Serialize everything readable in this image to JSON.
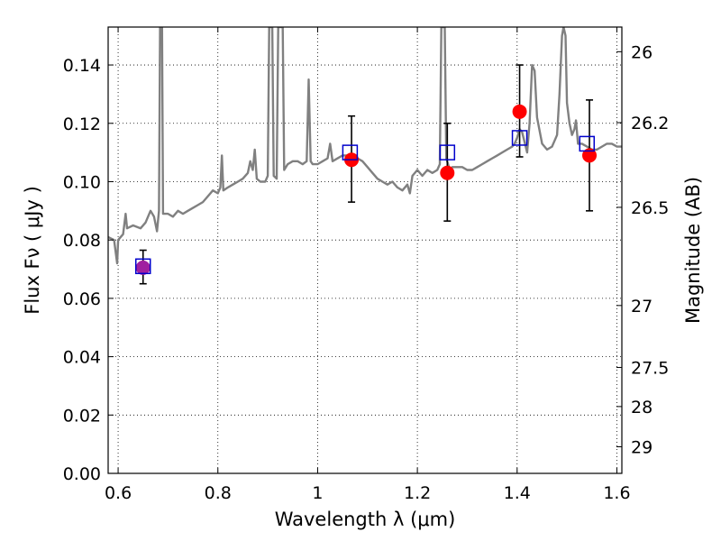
{
  "chart_data": {
    "type": "scatter",
    "xlabel": "Wavelength  λ (μm)",
    "ylabel": "Flux  Fν  ( μJy )",
    "y2label": "Magnitude (AB)",
    "xlim": [
      0.58,
      1.61
    ],
    "ylim": [
      0.0,
      0.153
    ],
    "grid": true,
    "x_ticks": [
      0.6,
      0.8,
      1.0,
      1.2,
      1.4,
      1.6
    ],
    "x_tick_labels": [
      "0.6",
      "0.8",
      "1",
      "1.2",
      "1.4",
      "1.6"
    ],
    "y_ticks": [
      0.0,
      0.02,
      0.04,
      0.06,
      0.08,
      0.1,
      0.12,
      0.14
    ],
    "y_tick_labels": [
      "0.00",
      "0.02",
      "0.04",
      "0.06",
      "0.08",
      "0.10",
      "0.12",
      "0.14"
    ],
    "y2_ticks": [
      26,
      26.2,
      26.5,
      27,
      27.5,
      28,
      29
    ],
    "y2_tick_labels": [
      "26",
      "26.2",
      "26.5",
      "27",
      "27.5",
      "28",
      "29"
    ],
    "colors": {
      "spectrum": "#808080",
      "observed": "#ff0000",
      "model": "#0000cc",
      "errorbar": "#000000",
      "overlap": "#a020a0"
    },
    "spectrum": [
      [
        0.58,
        0.081
      ],
      [
        0.592,
        0.08
      ],
      [
        0.598,
        0.072
      ],
      [
        0.6,
        0.08
      ],
      [
        0.61,
        0.082
      ],
      [
        0.615,
        0.089
      ],
      [
        0.618,
        0.084
      ],
      [
        0.63,
        0.085
      ],
      [
        0.645,
        0.084
      ],
      [
        0.655,
        0.086
      ],
      [
        0.665,
        0.09
      ],
      [
        0.672,
        0.088
      ],
      [
        0.678,
        0.083
      ],
      [
        0.682,
        0.09
      ],
      [
        0.684,
        0.153
      ],
      [
        0.688,
        0.153
      ],
      [
        0.69,
        0.089
      ],
      [
        0.7,
        0.089
      ],
      [
        0.71,
        0.088
      ],
      [
        0.72,
        0.09
      ],
      [
        0.73,
        0.089
      ],
      [
        0.74,
        0.09
      ],
      [
        0.75,
        0.091
      ],
      [
        0.76,
        0.092
      ],
      [
        0.77,
        0.093
      ],
      [
        0.78,
        0.095
      ],
      [
        0.79,
        0.097
      ],
      [
        0.8,
        0.096
      ],
      [
        0.805,
        0.098
      ],
      [
        0.808,
        0.109
      ],
      [
        0.811,
        0.097
      ],
      [
        0.82,
        0.098
      ],
      [
        0.83,
        0.099
      ],
      [
        0.84,
        0.1
      ],
      [
        0.85,
        0.101
      ],
      [
        0.86,
        0.103
      ],
      [
        0.865,
        0.107
      ],
      [
        0.87,
        0.104
      ],
      [
        0.874,
        0.111
      ],
      [
        0.878,
        0.101
      ],
      [
        0.885,
        0.1
      ],
      [
        0.895,
        0.1
      ],
      [
        0.9,
        0.102
      ],
      [
        0.903,
        0.153
      ],
      [
        0.909,
        0.153
      ],
      [
        0.912,
        0.102
      ],
      [
        0.918,
        0.101
      ],
      [
        0.921,
        0.153
      ],
      [
        0.93,
        0.153
      ],
      [
        0.933,
        0.104
      ],
      [
        0.94,
        0.106
      ],
      [
        0.95,
        0.107
      ],
      [
        0.96,
        0.107
      ],
      [
        0.97,
        0.106
      ],
      [
        0.978,
        0.107
      ],
      [
        0.982,
        0.135
      ],
      [
        0.986,
        0.107
      ],
      [
        0.99,
        0.106
      ],
      [
        1.0,
        0.106
      ],
      [
        1.01,
        0.107
      ],
      [
        1.02,
        0.108
      ],
      [
        1.025,
        0.113
      ],
      [
        1.03,
        0.107
      ],
      [
        1.04,
        0.108
      ],
      [
        1.05,
        0.109
      ],
      [
        1.06,
        0.109
      ],
      [
        1.07,
        0.107
      ],
      [
        1.08,
        0.108
      ],
      [
        1.09,
        0.107
      ],
      [
        1.1,
        0.105
      ],
      [
        1.11,
        0.103
      ],
      [
        1.12,
        0.101
      ],
      [
        1.13,
        0.1
      ],
      [
        1.14,
        0.099
      ],
      [
        1.15,
        0.1
      ],
      [
        1.16,
        0.098
      ],
      [
        1.17,
        0.097
      ],
      [
        1.18,
        0.099
      ],
      [
        1.185,
        0.096
      ],
      [
        1.19,
        0.102
      ],
      [
        1.2,
        0.104
      ],
      [
        1.21,
        0.102
      ],
      [
        1.22,
        0.104
      ],
      [
        1.23,
        0.103
      ],
      [
        1.24,
        0.104
      ],
      [
        1.245,
        0.106
      ],
      [
        1.248,
        0.153
      ],
      [
        1.255,
        0.153
      ],
      [
        1.258,
        0.108
      ],
      [
        1.265,
        0.104
      ],
      [
        1.27,
        0.105
      ],
      [
        1.28,
        0.105
      ],
      [
        1.29,
        0.105
      ],
      [
        1.3,
        0.104
      ],
      [
        1.31,
        0.104
      ],
      [
        1.32,
        0.105
      ],
      [
        1.33,
        0.106
      ],
      [
        1.34,
        0.107
      ],
      [
        1.35,
        0.108
      ],
      [
        1.36,
        0.109
      ],
      [
        1.37,
        0.11
      ],
      [
        1.38,
        0.111
      ],
      [
        1.39,
        0.112
      ],
      [
        1.395,
        0.113
      ],
      [
        1.4,
        0.115
      ],
      [
        1.405,
        0.118
      ],
      [
        1.41,
        0.117
      ],
      [
        1.42,
        0.11
      ],
      [
        1.425,
        0.12
      ],
      [
        1.43,
        0.14
      ],
      [
        1.435,
        0.138
      ],
      [
        1.44,
        0.122
      ],
      [
        1.45,
        0.113
      ],
      [
        1.46,
        0.111
      ],
      [
        1.47,
        0.112
      ],
      [
        1.475,
        0.114
      ],
      [
        1.48,
        0.116
      ],
      [
        1.485,
        0.13
      ],
      [
        1.49,
        0.15
      ],
      [
        1.493,
        0.153
      ],
      [
        1.497,
        0.15
      ],
      [
        1.5,
        0.127
      ],
      [
        1.505,
        0.12
      ],
      [
        1.51,
        0.116
      ],
      [
        1.515,
        0.118
      ],
      [
        1.518,
        0.121
      ],
      [
        1.522,
        0.113
      ],
      [
        1.53,
        0.113
      ],
      [
        1.54,
        0.112
      ],
      [
        1.55,
        0.111
      ],
      [
        1.56,
        0.111
      ],
      [
        1.57,
        0.112
      ],
      [
        1.58,
        0.113
      ],
      [
        1.59,
        0.113
      ],
      [
        1.6,
        0.112
      ],
      [
        1.61,
        0.112
      ]
    ],
    "model_points": [
      {
        "x": 0.65,
        "y": 0.071
      },
      {
        "x": 1.065,
        "y": 0.11
      },
      {
        "x": 1.26,
        "y": 0.11
      },
      {
        "x": 1.405,
        "y": 0.115
      },
      {
        "x": 1.54,
        "y": 0.113
      }
    ],
    "observed_points": [
      {
        "x": 0.65,
        "y": 0.0705,
        "err_low": 0.065,
        "err_high": 0.0765
      },
      {
        "x": 1.068,
        "y": 0.1075,
        "err_low": 0.093,
        "err_high": 0.1225
      },
      {
        "x": 1.26,
        "y": 0.103,
        "err_low": 0.0865,
        "err_high": 0.12
      },
      {
        "x": 1.405,
        "y": 0.124,
        "err_low": 0.1085,
        "err_high": 0.14
      },
      {
        "x": 1.545,
        "y": 0.109,
        "err_low": 0.09,
        "err_high": 0.128
      }
    ]
  }
}
